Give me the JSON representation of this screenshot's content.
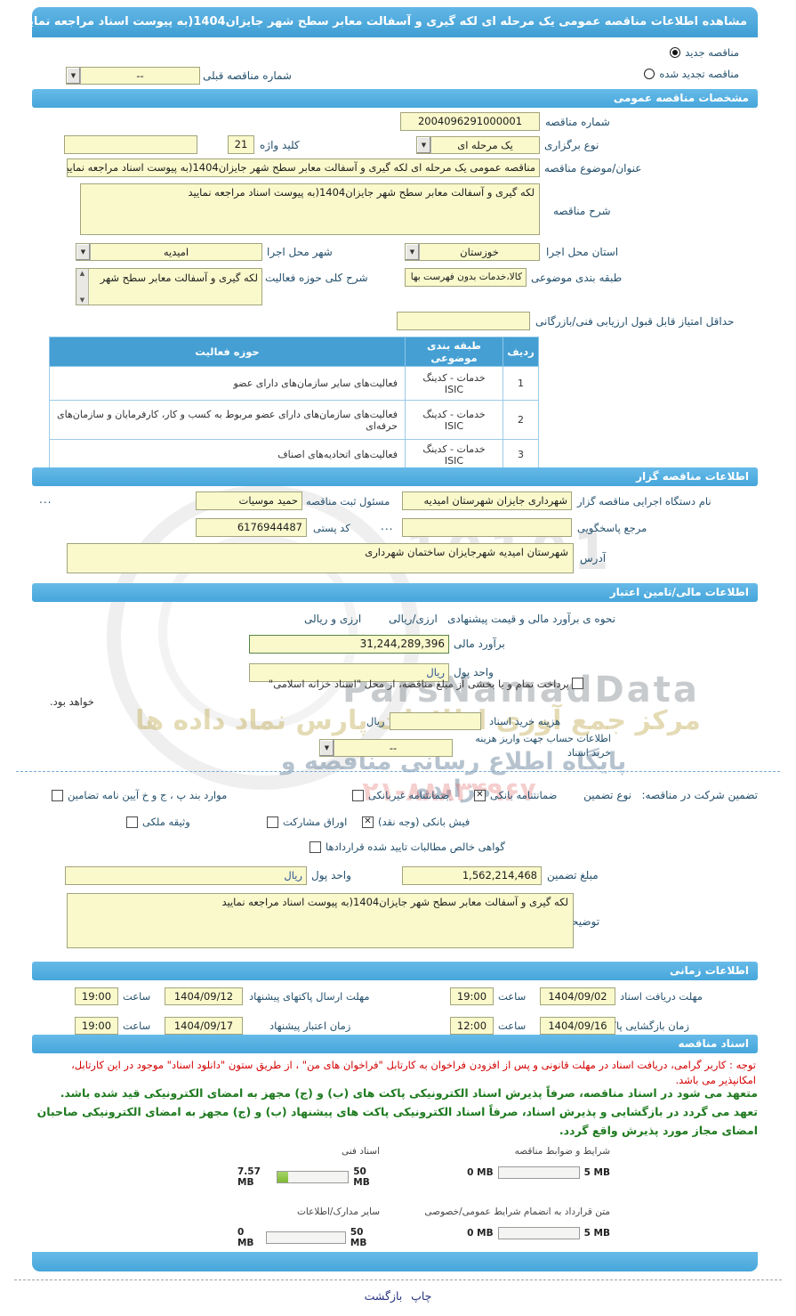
{
  "header": {
    "title": "مشاهده اطلاعات مناقصه عمومی یک مرحله ای لکه گیری و آسفالت معابر سطح شهر جایزان1404(به پیوست اسناد مراجعه نمایید)"
  },
  "top": {
    "new_label": "مناقصه جدید",
    "renew_label": "مناقصه تجدید شده",
    "prev_label": "شماره مناقصه قبلی",
    "prev_value": "--"
  },
  "sections": {
    "general": "مشخصات مناقصه عمومی",
    "agency": "اطلاعات مناقصه گزار",
    "financial": "اطلاعات مالی/تامین اعتبار",
    "timing": "اطلاعات زمانی",
    "docs": "اسناد مناقصه"
  },
  "general": {
    "number_label": "شماره مناقصه",
    "number": "2004096291000001",
    "type_label": "نوع برگزاری",
    "type_value": "یک مرحله ای",
    "keyword_label": "کلید واژه",
    "keyword_count": "21",
    "keyword_value": "",
    "subject_label": "عنوان/موضوع مناقصه",
    "subject": "مناقصه عمومی یک مرحله ای لکه گیری و آسفالت معابر سطح شهر جایزان1404(به پیوست اسناد مراجعه نمایید)",
    "desc_label": "شرح مناقصه",
    "desc": "لکه گیری و آسفالت معابر سطح شهر جایزان1404(به پیوست اسناد مراجعه نمایید",
    "province_label": "استان محل اجرا",
    "province": "خوزستان",
    "city_label": "شهر محل اجرا",
    "city": "امیدیه",
    "category_label": "طبقه بندی موضوعی",
    "category": "کالا،خدمات بدون فهرست بها",
    "activity_label": "شرح کلی حوزه فعالیت",
    "activity": "لکه گیری و آسفالت معابر سطح شهر",
    "min_score_label": "حداقل امتیاز قابل قبول ارزیابی فنی/بازرگانی",
    "min_score": ""
  },
  "table": {
    "headers": [
      "ردیف",
      "طبقه بندی موضوعی",
      "حوزه فعالیت"
    ],
    "rows": [
      {
        "num": "1",
        "cat": "خدمات - کدینگ ISIC",
        "field": "فعالیت‌های سایر سازمان‌های دارای عضو"
      },
      {
        "num": "2",
        "cat": "خدمات - کدینگ ISIC",
        "field": "فعالیت‌های سازمان‌های دارای عضو مربوط به کسب و کار، کارفرمایان و سازمان‌های حرفه‌ای"
      },
      {
        "num": "3",
        "cat": "خدمات - کدینگ ISIC",
        "field": "فعالیت‌های اتحادیه‌های اصناف"
      }
    ]
  },
  "agency": {
    "org_label": "نام دستگاه اجرایی مناقصه گزار",
    "org": "شهرداری جایزان شهرستان امیدیه",
    "registrar_label": "مسئول ثبت مناقصه",
    "registrar": "حمید موسیات",
    "ellipsis": "...",
    "contact_label": "مرجع پاسخگویی",
    "contact": "",
    "postal_label": "کد پستی",
    "postal": "6176944487",
    "address_label": "آدرس",
    "address": "شهرستان امیدیه شهرجایزان ساختمان شهرداری"
  },
  "financial": {
    "method_label": "نحوه ی برآورد مالی و قیمت پیشنهادی",
    "opt1": "ارزی/ریالی",
    "opt2": "ارزی و ریالی",
    "estimate_label": "برآورد مالی",
    "estimate": "31,244,289,396",
    "currency_label": "واحد پول",
    "currency": "ریال",
    "treasury_line1": "پرداخت تمام و یا بخشی از مبلغ مناقصه، از محل \"اسناد خزانه اسلامی\"",
    "treasury_line2": "خواهد بود.",
    "doc_fee_label": "هزینه خرید اسناد",
    "doc_fee": "",
    "rial": "ریال",
    "account_label_1": "اطلاعات حساب جهت واریز هزینه",
    "account_label_2": "خرید اسناد",
    "account_value": "--"
  },
  "guarantee": {
    "title": "تضمین شرکت در مناقصه:",
    "type_label": "نوع تضمین",
    "opts": [
      "ضمانتنامه بانکی",
      "ضمانتنامه غیربانکی",
      "موارد بند پ ، ج و خ آیین نامه تضامین",
      "فیش بانکی (وجه نقد)",
      "اوراق مشارکت",
      "وثیقه ملکی",
      "گواهی خالص مطالبات تایید شده قراردادها"
    ],
    "amount_label": "مبلغ تضمین",
    "amount": "1,562,214,468",
    "currency_label": "واحد پول",
    "currency": "ریال",
    "notes_label": "توضیحات",
    "notes": "لکه گیری و آسفالت معابر سطح شهر جایزان1404(به پیوست اسناد مراجعه نمایید"
  },
  "timing": {
    "hour_label": "ساعت",
    "r1a_label": "مهلت دریافت اسناد",
    "r1a_date": "1404/09/02",
    "r1a_time": "19:00",
    "r1b_label": "مهلت ارسال پاکتهای پیشنهاد",
    "r1b_date": "1404/09/12",
    "r1b_time": "19:00",
    "r2a_label": "زمان بازگشایی پاکت ها",
    "r2a_date": "1404/09/16",
    "r2a_time": "12:00",
    "r2b_label": "زمان اعتبار پیشنهاد",
    "r2b_date": "1404/09/17",
    "r2b_time": "19:00"
  },
  "docs": {
    "note": "توجه : کاربر گرامی، دریافت اسناد در مهلت قانونی و پس از افزودن فراخوان به کارتابل \"فراخوان های من\" ، از طریق ستون \"دانلود اسناد\" موجود در این کارتابل، امکانپذیر می باشد.",
    "commit1": "متعهد می شود در اسناد مناقصه، صرفاً پذیرش اسناد الکترونیکی پاکت های (ب) و (ج) مجهز به امضای الکترونیکی قید شده باشد.",
    "commit2": "تعهد می گردد در بازگشایی و پذیرش اسناد، صرفاً اسناد الکترونیکی پاکت های پیشنهاد (ب) و (ج) مجهز به امضای الکترونیکی صاحبان",
    "commit3": "امضای مجاز مورد پذیرش واقع گردد.",
    "uploads": [
      {
        "label": "شرایط و ضوابط مناقصه",
        "current": "0 MB",
        "max": "5 MB",
        "pct": 0
      },
      {
        "label": "اسناد فنی",
        "current": "7.57 MB",
        "max": "50 MB",
        "pct": 15
      },
      {
        "label": "متن قرارداد به انضمام شرایط عمومی/خصوصی",
        "current": "0 MB",
        "max": "5 MB",
        "pct": 0
      },
      {
        "label": "سایر مدارک/اطلاعات",
        "current": "0 MB",
        "max": "50 MB",
        "pct": 0
      }
    ]
  },
  "footer": {
    "print": "چاپ",
    "back": "بازگشت"
  },
  "watermark": {
    "brand": "ParsNamadData",
    "digits": "10101",
    "line": "مرکز جمع آوری اطلاعات پارس نماد داده ها",
    "tagline": "پایگاه اطلاع رسانی مناقصه و مزایده",
    "phone": "۰۲۱-۸۸۸۳۴۹۶۷"
  }
}
